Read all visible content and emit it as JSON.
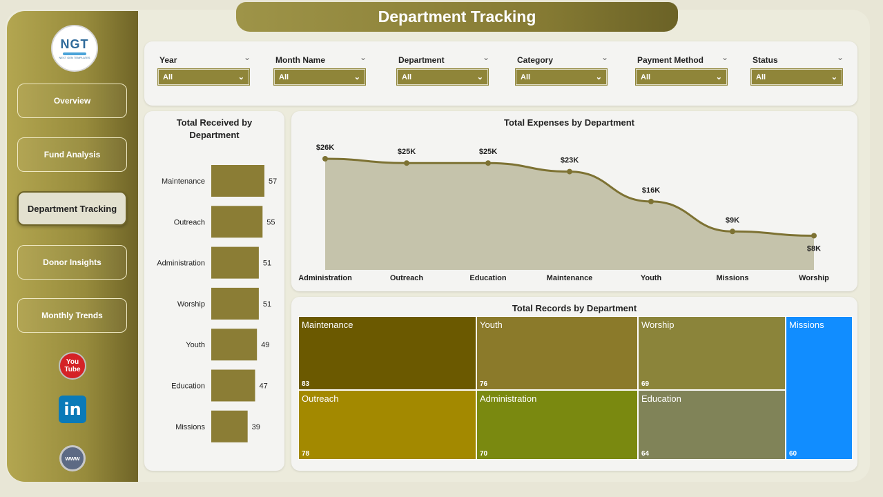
{
  "page": {
    "title": "Department Tracking"
  },
  "logo": {
    "text": "NGT",
    "subtitle": "NEXT GEN TEMPLATES"
  },
  "sidebar": {
    "items": [
      {
        "label": "Overview",
        "active": false
      },
      {
        "label": "Fund Analysis",
        "active": false
      },
      {
        "label": "Department Tracking",
        "active": true
      },
      {
        "label": "Donor Insights",
        "active": false
      },
      {
        "label": "Monthly Trends",
        "active": false
      }
    ],
    "social": {
      "youtube_top": "You",
      "youtube_bottom": "Tube",
      "linkedin": "in",
      "web": "www"
    }
  },
  "filters": [
    {
      "label": "Year",
      "value": "All"
    },
    {
      "label": "Month Name",
      "value": "All"
    },
    {
      "label": "Department",
      "value": "All"
    },
    {
      "label": "Category",
      "value": "All"
    },
    {
      "label": "Payment Method",
      "value": "All"
    },
    {
      "label": "Status",
      "value": "All"
    }
  ],
  "colors": {
    "accent": "#8b7f35",
    "bar": "#8b7d35",
    "line": "#7d7233",
    "area": "#c5c3ab",
    "missions": "#118dff"
  },
  "chart_data": [
    {
      "type": "bar",
      "orientation": "horizontal",
      "title": "Total Received by Department",
      "categories": [
        "Maintenance",
        "Outreach",
        "Administration",
        "Worship",
        "Youth",
        "Education",
        "Missions"
      ],
      "values": [
        57,
        55,
        51,
        51,
        49,
        47,
        39
      ]
    },
    {
      "type": "area",
      "title": "Total Expenses by Department",
      "categories": [
        "Administration",
        "Outreach",
        "Education",
        "Maintenance",
        "Youth",
        "Missions",
        "Worship"
      ],
      "values": [
        26000,
        25000,
        25000,
        23000,
        16000,
        9000,
        8000
      ],
      "labels": [
        "$26K",
        "$25K",
        "$25K",
        "$23K",
        "$16K",
        "$9K",
        "$8K"
      ]
    },
    {
      "type": "treemap",
      "title": "Total Records by Department",
      "items": [
        {
          "name": "Maintenance",
          "value": 83,
          "color": "#6b5900"
        },
        {
          "name": "Youth",
          "value": 76,
          "color": "#8b7a2a"
        },
        {
          "name": "Worship",
          "value": 69,
          "color": "#8b843a"
        },
        {
          "name": "Missions",
          "value": 60,
          "color": "#118dff"
        },
        {
          "name": "Outreach",
          "value": 78,
          "color": "#a38900"
        },
        {
          "name": "Administration",
          "value": 70,
          "color": "#7a8910"
        },
        {
          "name": "Education",
          "value": 64,
          "color": "#808358"
        }
      ]
    }
  ]
}
